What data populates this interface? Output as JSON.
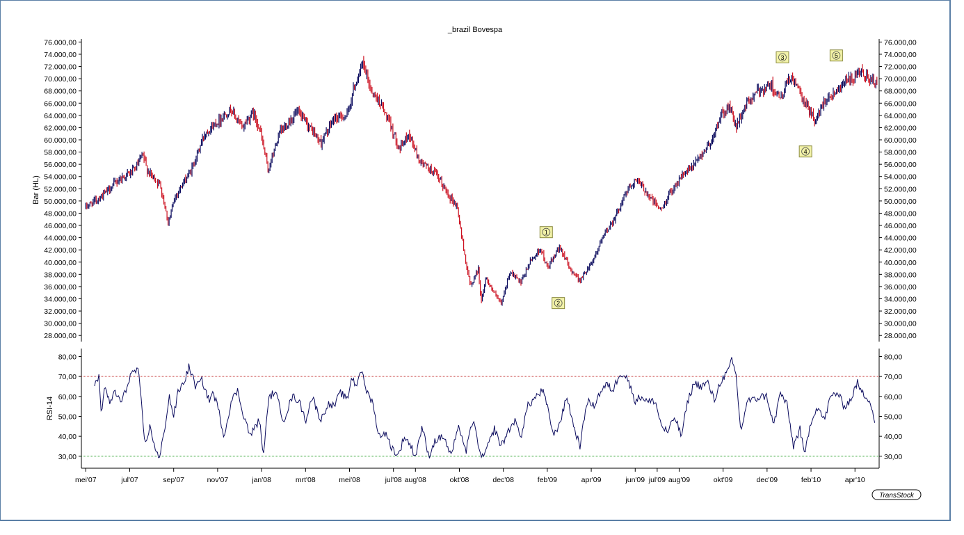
{
  "chart_data": {
    "type": "bar",
    "title": "_brazil Bovespa",
    "watermark": "TransStock",
    "colors": {
      "up_bar": "#0b0b5e",
      "down_bar": "#cc1020",
      "rsi_line": "#0b0b5e",
      "overbought_line": "#c84040",
      "oversold_line": "#2aa02a",
      "wave_label_fill": "#f2f2a8",
      "wave_label_stroke": "#8a8a40"
    },
    "x_ticks": [
      "mei'07",
      "jul'07",
      "sep'07",
      "nov'07",
      "jan'08",
      "mrt'08",
      "mei'08",
      "jul'08",
      "aug'08",
      "okt'08",
      "dec'08",
      "feb'09",
      "apr'09",
      "jun'09",
      "jul'09",
      "aug'09",
      "okt'09",
      "dec'09",
      "feb'10",
      "apr'10"
    ],
    "x_tick_months": [
      0,
      2,
      4,
      6,
      8,
      10,
      12,
      14,
      15,
      17,
      19,
      21,
      23,
      25,
      26,
      27,
      29,
      31,
      33,
      35
    ],
    "x_range_months": [
      -0.2,
      36.1
    ],
    "price_panel": {
      "ylabel": "Bar (HL)",
      "ylim": [
        27000,
        76500
      ],
      "y_ticks": [
        "76.000,00",
        "74.000,00",
        "72.000,00",
        "70.000,00",
        "68.000,00",
        "66.000,00",
        "64.000,00",
        "62.000,00",
        "60.000,00",
        "58.000,00",
        "56.000,00",
        "54.000,00",
        "52.000,00",
        "50.000,00",
        "48.000,00",
        "46.000,00",
        "44.000,00",
        "42.000,00",
        "40.000,00",
        "38.000,00",
        "36.000,00",
        "34.000,00",
        "32.000,00",
        "30.000,00",
        "28.000,00"
      ],
      "y_tick_values": [
        76000,
        74000,
        72000,
        70000,
        68000,
        66000,
        64000,
        62000,
        60000,
        58000,
        56000,
        54000,
        52000,
        50000,
        48000,
        46000,
        44000,
        42000,
        40000,
        38000,
        36000,
        34000,
        32000,
        30000,
        28000
      ],
      "close_anchors": [
        [
          0.0,
          49000
        ],
        [
          0.8,
          51000
        ],
        [
          1.5,
          53500
        ],
        [
          2.2,
          55000
        ],
        [
          2.6,
          57500
        ],
        [
          2.8,
          55000
        ],
        [
          3.4,
          52500
        ],
        [
          3.75,
          46500
        ],
        [
          4.1,
          51000
        ],
        [
          4.8,
          55000
        ],
        [
          5.4,
          61000
        ],
        [
          6.0,
          63000
        ],
        [
          6.6,
          65000
        ],
        [
          7.1,
          62000
        ],
        [
          7.6,
          64500
        ],
        [
          7.9,
          62000
        ],
        [
          8.3,
          55000
        ],
        [
          8.8,
          61000
        ],
        [
          9.6,
          64500
        ],
        [
          10.2,
          62000
        ],
        [
          10.7,
          59500
        ],
        [
          11.3,
          63500
        ],
        [
          11.9,
          64000
        ],
        [
          12.2,
          68500
        ],
        [
          12.6,
          72500
        ],
        [
          13.0,
          68000
        ],
        [
          13.4,
          66000
        ],
        [
          13.9,
          62000
        ],
        [
          14.3,
          58500
        ],
        [
          14.7,
          61000
        ],
        [
          15.2,
          56500
        ],
        [
          15.9,
          54500
        ],
        [
          16.5,
          51000
        ],
        [
          16.9,
          49000
        ],
        [
          17.2,
          42000
        ],
        [
          17.5,
          36000
        ],
        [
          17.85,
          39000
        ],
        [
          18.0,
          33500
        ],
        [
          18.2,
          37500
        ],
        [
          18.5,
          35500
        ],
        [
          18.9,
          33000
        ],
        [
          19.3,
          38500
        ],
        [
          19.8,
          36500
        ],
        [
          20.2,
          40000
        ],
        [
          20.7,
          42200
        ],
        [
          21.0,
          39000
        ],
        [
          21.6,
          42500
        ],
        [
          22.0,
          39000
        ],
        [
          22.5,
          37000
        ],
        [
          23.1,
          40500
        ],
        [
          23.6,
          44500
        ],
        [
          24.1,
          47500
        ],
        [
          24.6,
          51500
        ],
        [
          25.0,
          53500
        ],
        [
          25.4,
          52000
        ],
        [
          25.8,
          50000
        ],
        [
          26.2,
          48500
        ],
        [
          26.6,
          51500
        ],
        [
          27.1,
          54000
        ],
        [
          27.6,
          55500
        ],
        [
          28.0,
          57500
        ],
        [
          28.5,
          60000
        ],
        [
          28.9,
          64000
        ],
        [
          29.3,
          65500
        ],
        [
          29.6,
          62000
        ],
        [
          30.0,
          65500
        ],
        [
          30.6,
          68000
        ],
        [
          31.2,
          69000
        ],
        [
          31.6,
          66500
        ],
        [
          32.0,
          70000
        ],
        [
          32.3,
          69500
        ],
        [
          32.6,
          66500
        ],
        [
          33.0,
          64500
        ],
        [
          33.2,
          63000
        ],
        [
          33.6,
          66500
        ],
        [
          34.0,
          67500
        ],
        [
          34.5,
          69500
        ],
        [
          35.0,
          70000
        ],
        [
          35.3,
          71000
        ],
        [
          35.6,
          70200
        ],
        [
          36.0,
          69000
        ]
      ],
      "wave_labels": [
        {
          "label": "1",
          "month": 20.95,
          "value": 44900
        },
        {
          "label": "2",
          "month": 21.5,
          "value": 33300
        },
        {
          "label": "3",
          "month": 31.7,
          "value": 73500
        },
        {
          "label": "4",
          "month": 32.75,
          "value": 58100
        },
        {
          "label": "5",
          "month": 34.15,
          "value": 73800
        }
      ]
    },
    "rsi_panel": {
      "ylabel": "RSI-14",
      "ylim": [
        24,
        84
      ],
      "y_ticks": [
        "80,00",
        "70,00",
        "60,00",
        "50,00",
        "40,00",
        "30,00"
      ],
      "y_tick_values": [
        80,
        70,
        60,
        50,
        40,
        30
      ],
      "overbought": 70,
      "oversold": 30,
      "anchors": [
        [
          0.4,
          65
        ],
        [
          0.6,
          70
        ],
        [
          0.7,
          52
        ],
        [
          0.9,
          66
        ],
        [
          1.1,
          55
        ],
        [
          1.3,
          63
        ],
        [
          1.6,
          57
        ],
        [
          1.8,
          62
        ],
        [
          2.0,
          70
        ],
        [
          2.2,
          73
        ],
        [
          2.4,
          72
        ],
        [
          2.7,
          35
        ],
        [
          2.9,
          45
        ],
        [
          3.2,
          33
        ],
        [
          3.35,
          28
        ],
        [
          3.6,
          45
        ],
        [
          3.8,
          60
        ],
        [
          4.0,
          50
        ],
        [
          4.2,
          62
        ],
        [
          4.5,
          68
        ],
        [
          4.7,
          75
        ],
        [
          5.0,
          65
        ],
        [
          5.3,
          68
        ],
        [
          5.6,
          58
        ],
        [
          5.8,
          62
        ],
        [
          6.0,
          55
        ],
        [
          6.3,
          40
        ],
        [
          6.6,
          57
        ],
        [
          6.9,
          63
        ],
        [
          7.2,
          50
        ],
        [
          7.5,
          40
        ],
        [
          7.7,
          45
        ],
        [
          7.9,
          48
        ],
        [
          8.1,
          30
        ],
        [
          8.3,
          58
        ],
        [
          8.6,
          63
        ],
        [
          9.0,
          48
        ],
        [
          9.4,
          60
        ],
        [
          9.7,
          58
        ],
        [
          10.0,
          48
        ],
        [
          10.3,
          60
        ],
        [
          10.7,
          48
        ],
        [
          11.0,
          56
        ],
        [
          11.3,
          55
        ],
        [
          11.6,
          62
        ],
        [
          11.9,
          58
        ],
        [
          12.1,
          70
        ],
        [
          12.3,
          65
        ],
        [
          12.5,
          74
        ],
        [
          12.8,
          62
        ],
        [
          13.1,
          56
        ],
        [
          13.3,
          40
        ],
        [
          13.6,
          42
        ],
        [
          13.9,
          35
        ],
        [
          14.2,
          30
        ],
        [
          14.5,
          40
        ],
        [
          14.8,
          35
        ],
        [
          15.0,
          30
        ],
        [
          15.3,
          45
        ],
        [
          15.6,
          30
        ],
        [
          15.9,
          38
        ],
        [
          16.3,
          40
        ],
        [
          16.6,
          30
        ],
        [
          17.0,
          45
        ],
        [
          17.3,
          32
        ],
        [
          17.6,
          48
        ],
        [
          17.8,
          40
        ],
        [
          18.0,
          28
        ],
        [
          18.3,
          35
        ],
        [
          18.6,
          44
        ],
        [
          18.9,
          35
        ],
        [
          19.2,
          42
        ],
        [
          19.5,
          48
        ],
        [
          19.8,
          40
        ],
        [
          20.1,
          55
        ],
        [
          20.5,
          60
        ],
        [
          20.8,
          63
        ],
        [
          21.1,
          50
        ],
        [
          21.3,
          40
        ],
        [
          21.6,
          48
        ],
        [
          21.9,
          60
        ],
        [
          22.2,
          45
        ],
        [
          22.5,
          35
        ],
        [
          22.8,
          58
        ],
        [
          23.1,
          55
        ],
        [
          23.4,
          62
        ],
        [
          23.7,
          66
        ],
        [
          24.0,
          63
        ],
        [
          24.3,
          72
        ],
        [
          24.6,
          70
        ],
        [
          25.0,
          58
        ],
        [
          25.3,
          60
        ],
        [
          25.6,
          57
        ],
        [
          25.9,
          58
        ],
        [
          26.2,
          45
        ],
        [
          26.5,
          42
        ],
        [
          26.8,
          50
        ],
        [
          27.1,
          40
        ],
        [
          27.4,
          58
        ],
        [
          27.7,
          67
        ],
        [
          28.0,
          65
        ],
        [
          28.3,
          67
        ],
        [
          28.6,
          58
        ],
        [
          28.9,
          68
        ],
        [
          29.2,
          72
        ],
        [
          29.4,
          78
        ],
        [
          29.6,
          70
        ],
        [
          29.8,
          42
        ],
        [
          30.1,
          58
        ],
        [
          30.4,
          58
        ],
        [
          30.7,
          60
        ],
        [
          31.0,
          60
        ],
        [
          31.3,
          45
        ],
        [
          31.6,
          62
        ],
        [
          31.9,
          56
        ],
        [
          32.2,
          35
        ],
        [
          32.5,
          44
        ],
        [
          32.7,
          30
        ],
        [
          33.0,
          48
        ],
        [
          33.3,
          55
        ],
        [
          33.6,
          48
        ],
        [
          33.9,
          60
        ],
        [
          34.2,
          62
        ],
        [
          34.5,
          55
        ],
        [
          34.8,
          58
        ],
        [
          35.1,
          67
        ],
        [
          35.3,
          62
        ],
        [
          35.5,
          60
        ],
        [
          35.7,
          58
        ],
        [
          35.9,
          47
        ]
      ]
    }
  }
}
